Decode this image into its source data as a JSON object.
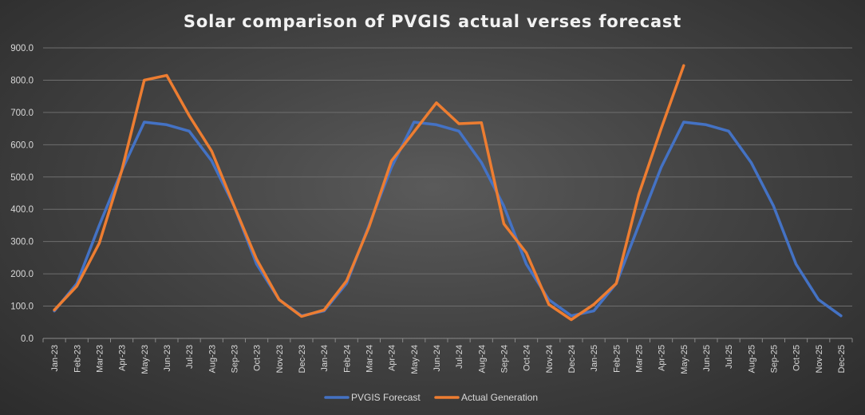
{
  "chart_data": {
    "type": "line",
    "title": "Solar comparison of PVGIS actual verses forecast",
    "xlabel": "",
    "ylabel": "",
    "ylim": [
      0,
      900
    ],
    "yticks": [
      "0.0",
      "100.0",
      "200.0",
      "300.0",
      "400.0",
      "500.0",
      "600.0",
      "700.0",
      "800.0",
      "900.0"
    ],
    "grid": true,
    "legend_position": "bottom",
    "categories": [
      "Jan-23",
      "Feb-23",
      "Mar-23",
      "Apr-23",
      "May-23",
      "Jun-23",
      "Jul-23",
      "Aug-23",
      "Sep-23",
      "Oct-23",
      "Nov-23",
      "Dec-23",
      "Jan-24",
      "Feb-24",
      "Mar-24",
      "Apr-24",
      "May-24",
      "Jun-24",
      "Jul-24",
      "Aug-24",
      "Sep-24",
      "Oct-24",
      "Nov-24",
      "Dec-24",
      "Jan-25",
      "Feb-25",
      "Mar-25",
      "Apr-25",
      "May-25",
      "Jun-25",
      "Jul-25",
      "Aug-25",
      "Sep-25",
      "Oct-25",
      "Nov-25",
      "Dec-25"
    ],
    "series": [
      {
        "name": "PVGIS Forecast",
        "color": "#4472c4",
        "values": [
          85,
          170,
          350,
          520,
          670,
          662,
          642,
          550,
          410,
          230,
          120,
          70,
          85,
          170,
          350,
          530,
          670,
          662,
          642,
          545,
          410,
          230,
          120,
          70,
          85,
          170,
          350,
          530,
          670,
          662,
          642,
          545,
          410,
          230,
          120,
          70
        ]
      },
      {
        "name": "Actual Generation",
        "color": "#ed7d31",
        "values": [
          88,
          162,
          295,
          520,
          800,
          815,
          690,
          580,
          410,
          245,
          120,
          68,
          88,
          178,
          345,
          550,
          640,
          730,
          665,
          668,
          355,
          265,
          105,
          58,
          105,
          170,
          445,
          650,
          845,
          null,
          null,
          null,
          null,
          null,
          null,
          null
        ]
      }
    ]
  }
}
